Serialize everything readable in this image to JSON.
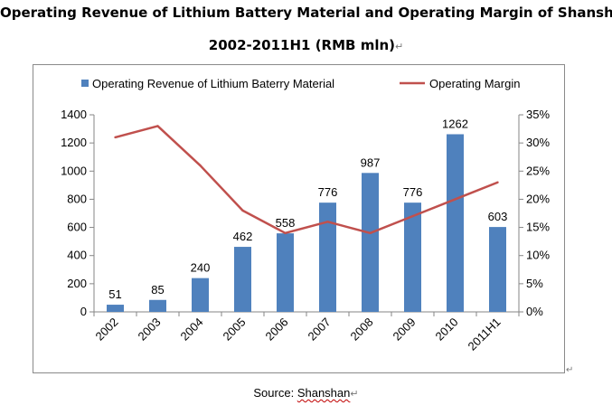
{
  "title_line1": "Operating Revenue of Lithium Battery Material and Operating Margin of Shanshan,",
  "title_line2": "2002-2011H1 (RMB mln)",
  "source_prefix": "Source: ",
  "source_name": "Shanshan",
  "colors": {
    "bar": "#4f81bd",
    "line": "#c0504d"
  },
  "chart_data": {
    "type": "bar+line",
    "categories": [
      "2002",
      "2003",
      "2004",
      "2005",
      "2006",
      "2007",
      "2008",
      "2009",
      "2010",
      "2011H1"
    ],
    "series": [
      {
        "name": "Operating Revenue of Lithium Baterry Material",
        "type": "bar",
        "axis": "left",
        "values": [
          51,
          85,
          240,
          462,
          558,
          776,
          987,
          776,
          1262,
          603
        ]
      },
      {
        "name": "Operating Margin",
        "type": "line",
        "axis": "right",
        "values": [
          31,
          33,
          26,
          18,
          14,
          16,
          14,
          17,
          20,
          23
        ]
      }
    ],
    "y_left": {
      "ylim": [
        0,
        1400
      ],
      "ticks": [
        0,
        200,
        400,
        600,
        800,
        1000,
        1200,
        1400
      ]
    },
    "y_right": {
      "ylim": [
        0,
        35
      ],
      "ticks": [
        "0%",
        "5%",
        "10%",
        "15%",
        "20%",
        "25%",
        "30%",
        "35%"
      ]
    },
    "legend_position": "top",
    "grid": false,
    "data_labels": true
  }
}
